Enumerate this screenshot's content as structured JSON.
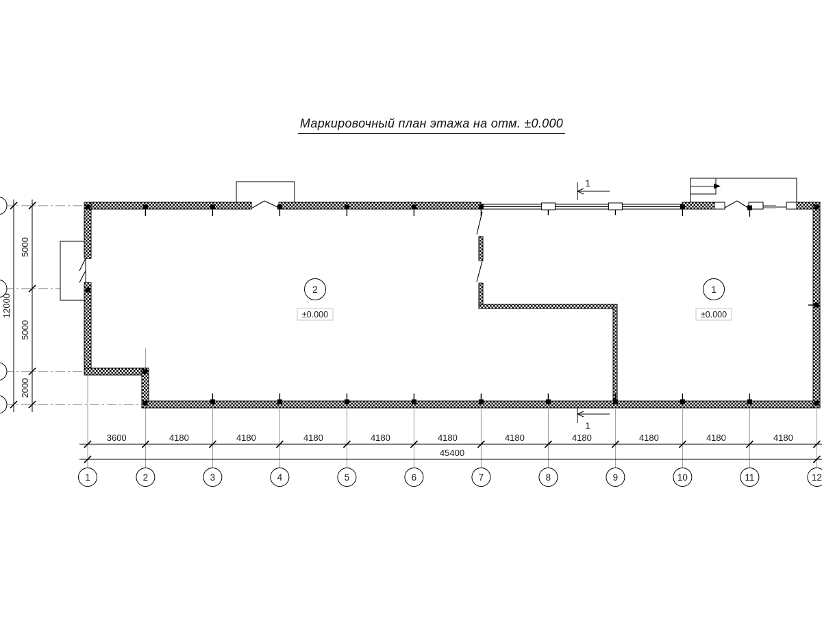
{
  "title": "Маркировочный план этажа на отм. ±0.000",
  "section_mark": {
    "label": "1"
  },
  "rooms": [
    {
      "number": "2",
      "elevation": "±0.000"
    },
    {
      "number": "1",
      "elevation": "±0.000"
    }
  ],
  "grid_bubbles": [
    "1",
    "2",
    "3",
    "4",
    "5",
    "6",
    "7",
    "8",
    "9",
    "10",
    "11",
    "12"
  ],
  "dimensions": {
    "columns_mm": [
      "3600",
      "4180",
      "4180",
      "4180",
      "4180",
      "4180",
      "4180",
      "4180",
      "4180",
      "4180",
      "4180"
    ],
    "columns_total": "45400",
    "rows_mm": [
      "5000",
      "5000",
      "2000"
    ],
    "rows_total": "12000"
  }
}
